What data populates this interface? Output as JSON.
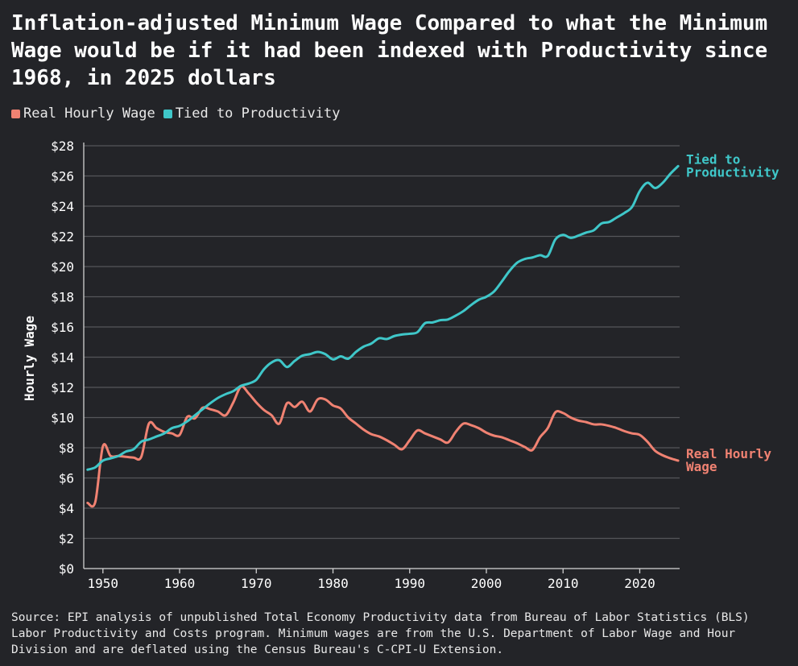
{
  "title": "Inflation-adjusted Minimum Wage Compared to what the Minimum Wage would be if it had been indexed with Productivity since 1968, in 2025 dollars",
  "legend": [
    {
      "label": "Real Hourly Wage",
      "color": "#f08272"
    },
    {
      "label": "Tied to Productivity",
      "color": "#3fc7c9"
    }
  ],
  "source": "Source: EPI analysis of unpublished Total Economy Productivity data from Bureau of Labor Statistics (BLS) Labor Productivity and Costs program. Minimum wages are from the U.S. Department of Labor Wage and Hour Division and are deflated using the Census Bureau's C-CPI-U Extension.",
  "chart_data": {
    "type": "line",
    "ylabel": "Hourly Wage",
    "xlabel": "",
    "xlim": [
      1947.5,
      2025.2
    ],
    "ylim": [
      0,
      28
    ],
    "x_ticks": [
      1950,
      1960,
      1970,
      1980,
      1990,
      2000,
      2010,
      2020
    ],
    "x_tick_labels": [
      "1950",
      "1960",
      "1970",
      "1980",
      "1990",
      "2000",
      "2010",
      "2020"
    ],
    "y_ticks": [
      0,
      2,
      4,
      6,
      8,
      10,
      12,
      14,
      16,
      18,
      20,
      22,
      24,
      26,
      28
    ],
    "y_tick_labels": [
      "$0",
      "$2",
      "$4",
      "$6",
      "$8",
      "$10",
      "$12",
      "$14",
      "$16",
      "$18",
      "$20",
      "$22",
      "$24",
      "$26",
      "$28"
    ],
    "grid": true,
    "series": [
      {
        "name": "Real Hourly Wage",
        "end_label": [
          "Real Hourly",
          "Wage"
        ],
        "color": "#f08272",
        "points": [
          [
            1948,
            4.35
          ],
          [
            1949,
            4.4
          ],
          [
            1950,
            8.1
          ],
          [
            1951,
            7.45
          ],
          [
            1952,
            7.45
          ],
          [
            1953,
            7.4
          ],
          [
            1954,
            7.35
          ],
          [
            1955,
            7.4
          ],
          [
            1956,
            9.6
          ],
          [
            1957,
            9.3
          ],
          [
            1958,
            9.05
          ],
          [
            1959,
            8.95
          ],
          [
            1960,
            8.85
          ],
          [
            1961,
            10.05
          ],
          [
            1962,
            9.95
          ],
          [
            1963,
            10.65
          ],
          [
            1964,
            10.55
          ],
          [
            1965,
            10.4
          ],
          [
            1966,
            10.15
          ],
          [
            1967,
            11.0
          ],
          [
            1968,
            12.05
          ],
          [
            1969,
            11.6
          ],
          [
            1970,
            11.0
          ],
          [
            1971,
            10.5
          ],
          [
            1972,
            10.15
          ],
          [
            1973,
            9.6
          ],
          [
            1974,
            10.95
          ],
          [
            1975,
            10.7
          ],
          [
            1976,
            11.05
          ],
          [
            1977,
            10.4
          ],
          [
            1978,
            11.2
          ],
          [
            1979,
            11.2
          ],
          [
            1980,
            10.8
          ],
          [
            1981,
            10.6
          ],
          [
            1982,
            10.0
          ],
          [
            1983,
            9.6
          ],
          [
            1984,
            9.2
          ],
          [
            1985,
            8.9
          ],
          [
            1986,
            8.75
          ],
          [
            1987,
            8.5
          ],
          [
            1988,
            8.2
          ],
          [
            1989,
            7.9
          ],
          [
            1990,
            8.5
          ],
          [
            1991,
            9.15
          ],
          [
            1992,
            8.95
          ],
          [
            1993,
            8.75
          ],
          [
            1994,
            8.55
          ],
          [
            1995,
            8.35
          ],
          [
            1996,
            9.05
          ],
          [
            1997,
            9.6
          ],
          [
            1998,
            9.5
          ],
          [
            1999,
            9.3
          ],
          [
            2000,
            9.0
          ],
          [
            2001,
            8.8
          ],
          [
            2002,
            8.7
          ],
          [
            2003,
            8.5
          ],
          [
            2004,
            8.3
          ],
          [
            2005,
            8.05
          ],
          [
            2006,
            7.85
          ],
          [
            2007,
            8.7
          ],
          [
            2008,
            9.3
          ],
          [
            2009,
            10.35
          ],
          [
            2010,
            10.3
          ],
          [
            2011,
            10.0
          ],
          [
            2012,
            9.8
          ],
          [
            2013,
            9.7
          ],
          [
            2014,
            9.55
          ],
          [
            2015,
            9.55
          ],
          [
            2016,
            9.45
          ],
          [
            2017,
            9.3
          ],
          [
            2018,
            9.1
          ],
          [
            2019,
            8.95
          ],
          [
            2020,
            8.85
          ],
          [
            2021,
            8.4
          ],
          [
            2022,
            7.8
          ],
          [
            2023,
            7.5
          ],
          [
            2024,
            7.3
          ],
          [
            2025,
            7.15
          ]
        ]
      },
      {
        "name": "Tied to Productivity",
        "end_label": [
          "Tied to",
          "Productivity"
        ],
        "color": "#3fc7c9",
        "points": [
          [
            1948,
            6.55
          ],
          [
            1949,
            6.7
          ],
          [
            1950,
            7.15
          ],
          [
            1951,
            7.3
          ],
          [
            1952,
            7.45
          ],
          [
            1953,
            7.75
          ],
          [
            1954,
            7.9
          ],
          [
            1955,
            8.4
          ],
          [
            1956,
            8.55
          ],
          [
            1957,
            8.75
          ],
          [
            1958,
            8.95
          ],
          [
            1959,
            9.3
          ],
          [
            1960,
            9.45
          ],
          [
            1961,
            9.75
          ],
          [
            1962,
            10.15
          ],
          [
            1963,
            10.55
          ],
          [
            1964,
            10.95
          ],
          [
            1965,
            11.3
          ],
          [
            1966,
            11.55
          ],
          [
            1967,
            11.75
          ],
          [
            1968,
            12.1
          ],
          [
            1969,
            12.25
          ],
          [
            1970,
            12.5
          ],
          [
            1971,
            13.2
          ],
          [
            1972,
            13.65
          ],
          [
            1973,
            13.8
          ],
          [
            1974,
            13.35
          ],
          [
            1975,
            13.75
          ],
          [
            1976,
            14.1
          ],
          [
            1977,
            14.2
          ],
          [
            1978,
            14.35
          ],
          [
            1979,
            14.2
          ],
          [
            1980,
            13.85
          ],
          [
            1981,
            14.05
          ],
          [
            1982,
            13.9
          ],
          [
            1983,
            14.35
          ],
          [
            1984,
            14.7
          ],
          [
            1985,
            14.9
          ],
          [
            1986,
            15.25
          ],
          [
            1987,
            15.2
          ],
          [
            1988,
            15.4
          ],
          [
            1989,
            15.5
          ],
          [
            1990,
            15.55
          ],
          [
            1991,
            15.65
          ],
          [
            1992,
            16.25
          ],
          [
            1993,
            16.3
          ],
          [
            1994,
            16.45
          ],
          [
            1995,
            16.5
          ],
          [
            1996,
            16.75
          ],
          [
            1997,
            17.05
          ],
          [
            1998,
            17.45
          ],
          [
            1999,
            17.8
          ],
          [
            2000,
            18.0
          ],
          [
            2001,
            18.35
          ],
          [
            2002,
            19.0
          ],
          [
            2003,
            19.7
          ],
          [
            2004,
            20.25
          ],
          [
            2005,
            20.5
          ],
          [
            2006,
            20.6
          ],
          [
            2007,
            20.75
          ],
          [
            2008,
            20.7
          ],
          [
            2009,
            21.8
          ],
          [
            2010,
            22.1
          ],
          [
            2011,
            21.9
          ],
          [
            2012,
            22.05
          ],
          [
            2013,
            22.25
          ],
          [
            2014,
            22.4
          ],
          [
            2015,
            22.85
          ],
          [
            2016,
            22.95
          ],
          [
            2017,
            23.25
          ],
          [
            2018,
            23.55
          ],
          [
            2019,
            23.95
          ],
          [
            2020,
            25.0
          ],
          [
            2021,
            25.55
          ],
          [
            2022,
            25.2
          ],
          [
            2023,
            25.55
          ],
          [
            2024,
            26.15
          ],
          [
            2025,
            26.65
          ]
        ]
      }
    ]
  }
}
